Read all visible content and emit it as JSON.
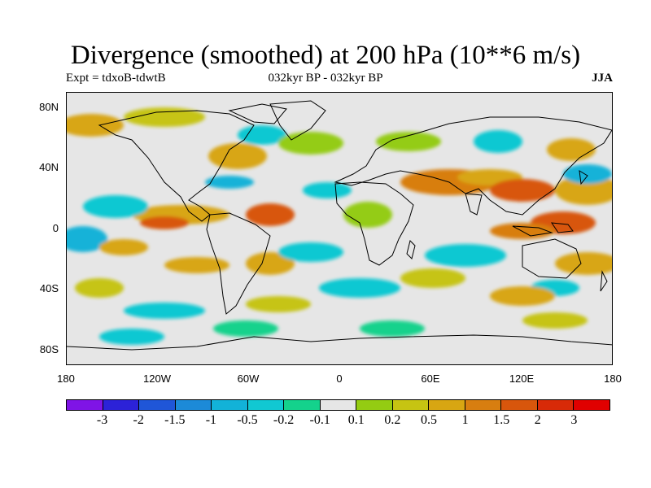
{
  "title": "Divergence (smoothed) at 200 hPa (10**6 m/s)",
  "subtitle_left": "Expt = tdxoB-tdwtB",
  "subtitle_center": "032kyr BP - 032kyr BP",
  "subtitle_right": "JJA",
  "y_axis_labels": [
    "80N",
    "40N",
    "0",
    "40S",
    "80S"
  ],
  "x_axis_labels": [
    "180",
    "120W",
    "60W",
    "0",
    "60E",
    "120E",
    "180"
  ],
  "colorbar": {
    "labels": [
      "-3",
      "-2",
      "-1.5",
      "-1",
      "-0.5",
      "-0.2",
      "-0.1",
      "0.1",
      "0.2",
      "0.5",
      "1",
      "1.5",
      "2",
      "3"
    ],
    "colors": [
      "#7f14e6",
      "#2c22d8",
      "#1f56d8",
      "#1c8ad8",
      "#12b2d8",
      "#11c8d2",
      "#14d28c",
      "#e6e6e6",
      "#94cc12",
      "#c6c412",
      "#d8a612",
      "#d87e10",
      "#d8560c",
      "#d82a08",
      "#e00000"
    ]
  },
  "chart_data": {
    "type": "heatmap",
    "title": "Divergence (smoothed) at 200 hPa (10**6 m/s)",
    "projection": "cylindrical-equidistant",
    "season": "JJA",
    "xlim": [
      -180,
      180
    ],
    "ylim": [
      -90,
      90
    ],
    "contour_levels": [
      -3,
      -2,
      -1.5,
      -1,
      -0.5,
      -0.2,
      -0.1,
      0.1,
      0.2,
      0.5,
      1,
      1.5,
      2,
      3
    ],
    "background_value_range": [
      -0.1,
      0.1
    ],
    "grid": false
  }
}
